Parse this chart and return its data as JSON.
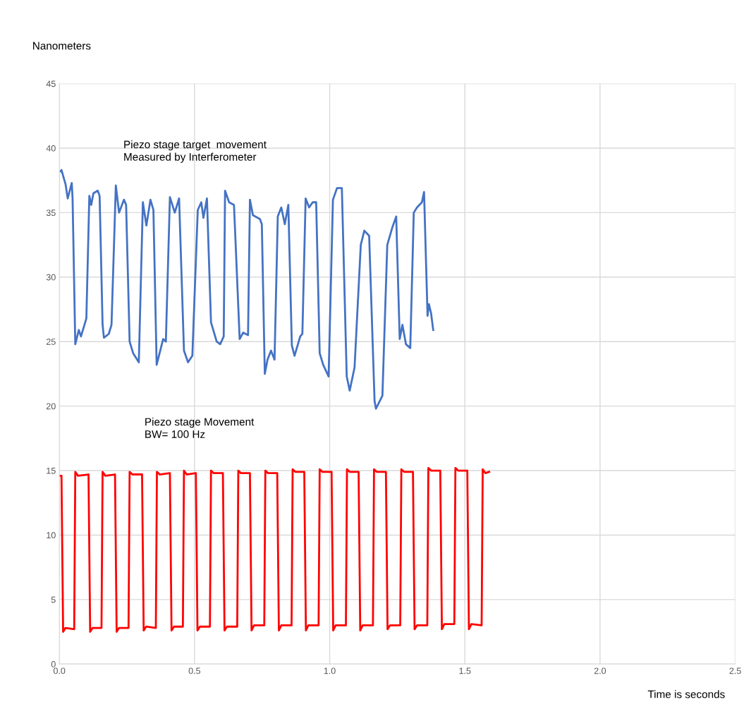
{
  "chart_data": {
    "type": "line",
    "xlabel": "Time is seconds",
    "ylabel": "Nanometers",
    "xlim": [
      0,
      2.5
    ],
    "ylim": [
      0,
      45
    ],
    "xticks": [
      {
        "value": 0,
        "label": "0.0"
      },
      {
        "value": 0.5,
        "label": "0.5"
      },
      {
        "value": 1,
        "label": "1.0"
      },
      {
        "value": 1.5,
        "label": "1.5"
      },
      {
        "value": 2,
        "label": "2.0"
      },
      {
        "value": 2.5,
        "label": "2.5"
      }
    ],
    "yticks": [
      0,
      5,
      10,
      15,
      20,
      25,
      30,
      35,
      40,
      45
    ],
    "grid": true,
    "marker": "none",
    "line_style": "solid",
    "annotations": [
      "Piezo stage target  movement\nMeasured by Interferometer",
      "Piezo stage Movement\nBW= 100 Hz"
    ],
    "series": [
      {
        "color": "#4472c4",
        "x": [
          0.005,
          0.008,
          0.023,
          0.031,
          0.046,
          0.049,
          0.059,
          0.072,
          0.08,
          0.093,
          0.1,
          0.111,
          0.118,
          0.126,
          0.142,
          0.149,
          0.16,
          0.165,
          0.183,
          0.193,
          0.209,
          0.221,
          0.239,
          0.247,
          0.26,
          0.273,
          0.294,
          0.309,
          0.322,
          0.337,
          0.348,
          0.36,
          0.384,
          0.394,
          0.409,
          0.427,
          0.443,
          0.461,
          0.476,
          0.492,
          0.512,
          0.525,
          0.533,
          0.546,
          0.561,
          0.582,
          0.595,
          0.608,
          0.613,
          0.628,
          0.646,
          0.667,
          0.68,
          0.698,
          0.705,
          0.716,
          0.742,
          0.749,
          0.76,
          0.77,
          0.783,
          0.796,
          0.808,
          0.821,
          0.834,
          0.847,
          0.86,
          0.87,
          0.891,
          0.899,
          0.911,
          0.924,
          0.937,
          0.95,
          0.963,
          0.976,
          0.996,
          1.012,
          1.027,
          1.045,
          1.063,
          1.074,
          1.092,
          1.115,
          1.128,
          1.146,
          1.166,
          1.171,
          1.195,
          1.213,
          1.231,
          1.246,
          1.259,
          1.269,
          1.282,
          1.298,
          1.311,
          1.323,
          1.341,
          1.349,
          1.362,
          1.367,
          1.375,
          1.383
        ],
        "values": [
          38.2,
          38.3,
          37.2,
          36.1,
          37.3,
          36.1,
          24.8,
          25.9,
          25.4,
          26.3,
          26.8,
          36.3,
          35.6,
          36.5,
          36.7,
          36.3,
          26.3,
          25.3,
          25.6,
          26.3,
          37.1,
          35.0,
          36.0,
          35.6,
          25.0,
          24.1,
          23.4,
          35.8,
          34.0,
          36.0,
          35.2,
          23.2,
          25.2,
          25.0,
          36.2,
          35.0,
          36.1,
          24.3,
          23.4,
          23.9,
          35.2,
          35.8,
          34.6,
          36.1,
          26.5,
          25.0,
          24.8,
          25.4,
          36.7,
          35.8,
          35.6,
          25.2,
          25.7,
          25.5,
          36.0,
          34.8,
          34.5,
          34.1,
          22.5,
          23.6,
          24.3,
          23.6,
          34.7,
          35.4,
          34.1,
          35.6,
          24.7,
          23.9,
          25.4,
          25.6,
          36.1,
          35.4,
          35.8,
          35.8,
          24.1,
          23.2,
          22.3,
          36.0,
          36.9,
          36.9,
          22.3,
          21.2,
          23.0,
          32.5,
          33.6,
          33.2,
          20.4,
          19.8,
          20.8,
          32.5,
          33.8,
          34.7,
          25.2,
          26.3,
          24.8,
          24.5,
          35.0,
          35.4,
          35.8,
          36.6,
          27.0,
          27.9,
          27.2,
          25.9
        ]
      },
      {
        "color": "#ff0000",
        "x": [
          0.0,
          0.008,
          0.014,
          0.023,
          0.055,
          0.059,
          0.069,
          0.108,
          0.114,
          0.123,
          0.156,
          0.16,
          0.17,
          0.206,
          0.212,
          0.221,
          0.256,
          0.26,
          0.27,
          0.306,
          0.312,
          0.321,
          0.357,
          0.361,
          0.371,
          0.409,
          0.415,
          0.424,
          0.457,
          0.461,
          0.471,
          0.505,
          0.511,
          0.52,
          0.557,
          0.561,
          0.571,
          0.605,
          0.611,
          0.62,
          0.658,
          0.662,
          0.672,
          0.705,
          0.711,
          0.72,
          0.758,
          0.762,
          0.772,
          0.806,
          0.812,
          0.821,
          0.859,
          0.863,
          0.873,
          0.906,
          0.912,
          0.921,
          0.959,
          0.963,
          0.973,
          1.007,
          1.013,
          1.022,
          1.06,
          1.064,
          1.074,
          1.107,
          1.113,
          1.122,
          1.16,
          1.164,
          1.174,
          1.208,
          1.214,
          1.223,
          1.261,
          1.265,
          1.275,
          1.308,
          1.314,
          1.323,
          1.361,
          1.365,
          1.375,
          1.409,
          1.415,
          1.424,
          1.461,
          1.465,
          1.475,
          1.509,
          1.515,
          1.524,
          1.562,
          1.566,
          1.576,
          1.59
        ],
        "values": [
          14.6,
          14.6,
          2.5,
          2.8,
          2.7,
          14.9,
          14.6,
          14.7,
          2.5,
          2.8,
          2.8,
          14.9,
          14.6,
          14.7,
          2.5,
          2.8,
          2.8,
          14.9,
          14.7,
          14.7,
          2.6,
          2.9,
          2.8,
          14.9,
          14.7,
          14.8,
          2.6,
          2.9,
          2.9,
          15.0,
          14.7,
          14.8,
          2.6,
          2.9,
          2.9,
          15.0,
          14.8,
          14.8,
          2.6,
          2.9,
          2.9,
          15.0,
          14.8,
          14.8,
          2.6,
          3.0,
          3.0,
          15.0,
          14.8,
          14.8,
          2.6,
          3.0,
          3.0,
          15.1,
          14.9,
          14.9,
          2.6,
          3.0,
          3.0,
          15.1,
          14.9,
          14.9,
          2.6,
          3.0,
          3.0,
          15.1,
          14.9,
          14.9,
          2.6,
          3.0,
          3.0,
          15.1,
          14.9,
          14.9,
          2.7,
          3.0,
          3.0,
          15.1,
          14.9,
          14.9,
          2.7,
          3.0,
          3.0,
          15.2,
          15.0,
          15.0,
          2.7,
          3.1,
          3.1,
          15.2,
          15.0,
          15.0,
          2.7,
          3.1,
          3.0,
          15.1,
          14.8,
          14.9
        ]
      }
    ]
  }
}
